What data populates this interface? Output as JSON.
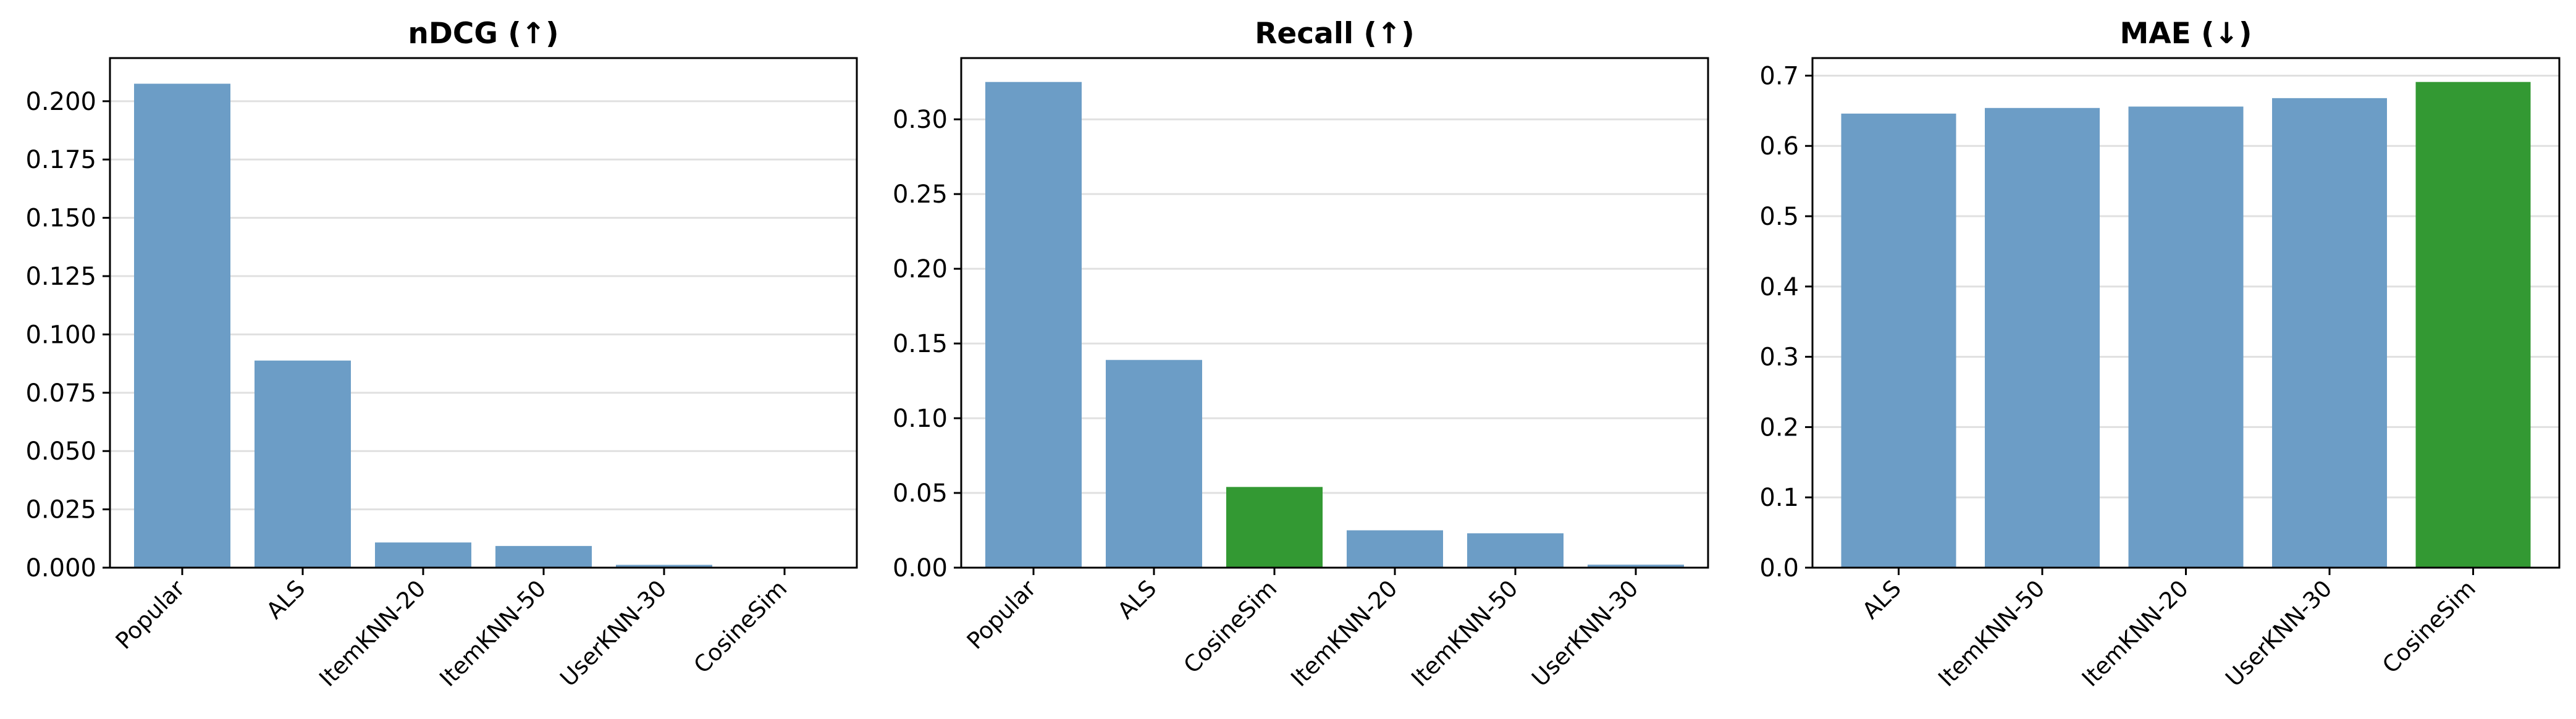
{
  "chart_data": [
    {
      "type": "bar",
      "title": "nDCG (↑)",
      "xlabel": "",
      "ylabel": "",
      "categories": [
        "Popular",
        "ALS",
        "ItemKNN-20",
        "ItemKNN-50",
        "UserKNN-30",
        "CosineSim"
      ],
      "values": [
        0.2075,
        0.0888,
        0.0108,
        0.0093,
        0.0012,
        0.0002
      ],
      "highlight": [
        false,
        false,
        false,
        false,
        false,
        false
      ],
      "ylim": [
        0,
        0.2185
      ],
      "yticks": [
        0.0,
        0.025,
        0.05,
        0.075,
        0.1,
        0.125,
        0.15,
        0.175,
        0.2
      ],
      "ytick_labels": [
        "0.000",
        "0.025",
        "0.050",
        "0.075",
        "0.100",
        "0.125",
        "0.150",
        "0.175",
        "0.200"
      ],
      "grid": "y",
      "legend": "none"
    },
    {
      "type": "bar",
      "title": "Recall (↑)",
      "xlabel": "",
      "ylabel": "",
      "categories": [
        "Popular",
        "ALS",
        "CosineSim",
        "ItemKNN-20",
        "ItemKNN-50",
        "UserKNN-30"
      ],
      "values": [
        0.325,
        0.139,
        0.054,
        0.025,
        0.023,
        0.002
      ],
      "highlight": [
        false,
        false,
        true,
        false,
        false,
        false
      ],
      "ylim": [
        0,
        0.341
      ],
      "yticks": [
        0.0,
        0.05,
        0.1,
        0.15,
        0.2,
        0.25,
        0.3
      ],
      "ytick_labels": [
        "0.00",
        "0.05",
        "0.10",
        "0.15",
        "0.20",
        "0.25",
        "0.30"
      ],
      "grid": "y",
      "legend": "none"
    },
    {
      "type": "bar",
      "title": "MAE (↓)",
      "xlabel": "",
      "ylabel": "",
      "categories": [
        "ALS",
        "ItemKNN-50",
        "ItemKNN-20",
        "UserKNN-30",
        "CosineSim"
      ],
      "values": [
        0.646,
        0.654,
        0.656,
        0.668,
        0.691
      ],
      "highlight": [
        false,
        false,
        false,
        false,
        true
      ],
      "ylim": [
        0,
        0.725
      ],
      "yticks": [
        0.0,
        0.1,
        0.2,
        0.3,
        0.4,
        0.5,
        0.6,
        0.7
      ],
      "ytick_labels": [
        "0.0",
        "0.1",
        "0.2",
        "0.3",
        "0.4",
        "0.5",
        "0.6",
        "0.7"
      ],
      "grid": "y",
      "legend": "none"
    }
  ],
  "colors": {
    "bar": "#6c9dc6",
    "highlight": "#339933",
    "grid": "#e0e0e0",
    "axis": "#000000"
  }
}
